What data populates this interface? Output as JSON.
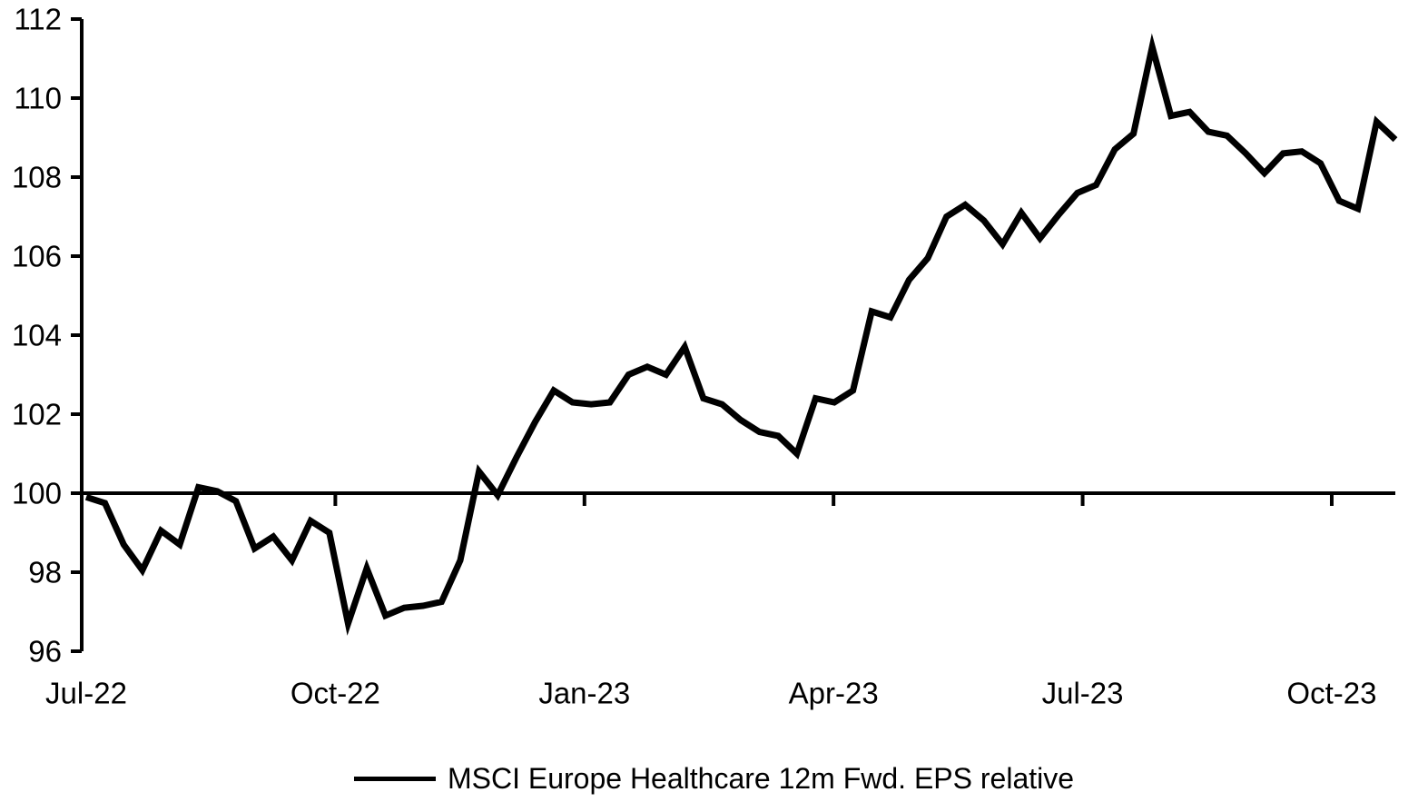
{
  "colors": {
    "line": "#000000",
    "axis": "#000000",
    "text": "#000000",
    "background": "#ffffff"
  },
  "chart_data": {
    "type": "line",
    "title": "",
    "xlabel": "",
    "ylabel": "",
    "ylim": [
      96,
      112
    ],
    "y_ticks": [
      96,
      98,
      100,
      102,
      104,
      106,
      108,
      110,
      112
    ],
    "baseline_value": 100,
    "grid": false,
    "legend_position": "bottom-center",
    "x_unit": "weeks since Jul-2022",
    "frequency": "weekly",
    "x_ticks": [
      {
        "label": "Jul-22",
        "week": 0
      },
      {
        "label": "Oct-22",
        "week": 13.32
      },
      {
        "label": "Jan-23",
        "week": 26.64
      },
      {
        "label": "Apr-23",
        "week": 39.96
      },
      {
        "label": "Jul-23",
        "week": 53.28
      },
      {
        "label": "Oct-23",
        "week": 66.6
      }
    ],
    "series": [
      {
        "name": "MSCI Europe Healthcare 12m Fwd. EPS relative",
        "values": [
          99.9,
          99.75,
          98.7,
          98.05,
          99.05,
          98.7,
          100.15,
          100.05,
          99.8,
          98.6,
          98.9,
          98.3,
          99.3,
          99.0,
          96.7,
          98.1,
          96.9,
          97.1,
          97.15,
          97.25,
          98.3,
          100.55,
          99.95,
          100.9,
          101.8,
          102.6,
          102.3,
          102.25,
          102.3,
          103.0,
          103.2,
          103.0,
          103.7,
          102.4,
          102.25,
          101.85,
          101.55,
          101.45,
          101.0,
          102.4,
          102.3,
          102.6,
          104.6,
          104.45,
          105.4,
          105.95,
          107.0,
          107.3,
          106.9,
          106.3,
          107.1,
          106.45,
          107.05,
          107.6,
          107.8,
          108.7,
          109.1,
          111.3,
          109.55,
          109.65,
          109.15,
          109.05,
          108.6,
          108.1,
          108.6,
          108.65,
          108.35,
          107.4,
          107.2,
          109.4,
          108.95
        ]
      }
    ]
  }
}
